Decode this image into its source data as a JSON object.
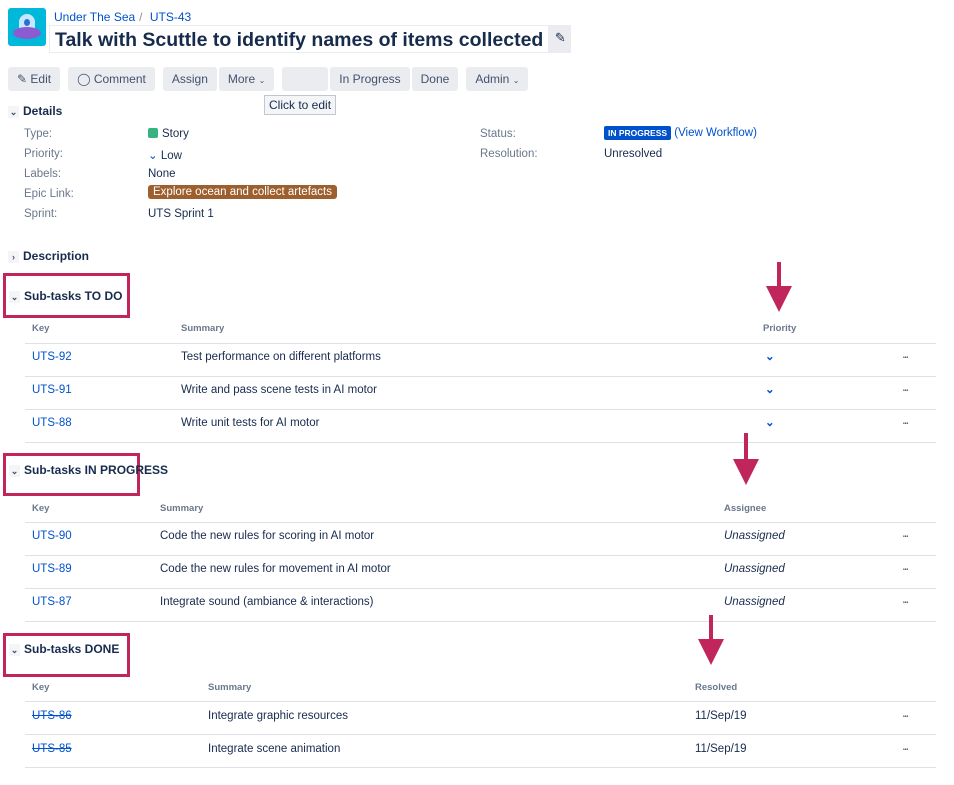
{
  "breadcrumb": {
    "project": "Under The Sea",
    "issue_key": "UTS-43"
  },
  "issue_title": "Talk with Scuttle to identify names of items collected",
  "toolbar": {
    "edit": "Edit",
    "comment": "Comment",
    "assign": "Assign",
    "more": "More",
    "in_progress": "In Progress",
    "done": "Done",
    "admin": "Admin",
    "tooltip": "Click to edit"
  },
  "details": {
    "heading": "Details",
    "type_label": "Type:",
    "type_value": "Story",
    "priority_label": "Priority:",
    "priority_value": "Low",
    "labels_label": "Labels:",
    "labels_value": "None",
    "epic_label": "Epic Link:",
    "epic_value": "Explore ocean and collect artefacts",
    "sprint_label": "Sprint:",
    "sprint_value": "UTS Sprint 1",
    "status_label": "Status:",
    "status_value": "IN PROGRESS",
    "workflow_link": "(View Workflow)",
    "resolution_label": "Resolution:",
    "resolution_value": "Unresolved"
  },
  "description": {
    "heading": "Description"
  },
  "sections": [
    {
      "heading": "Sub-tasks TO DO",
      "columns": [
        "Key",
        "Summary",
        "Priority"
      ],
      "done": false,
      "third_type": "priority-icon",
      "rows": [
        {
          "key": "UTS-92",
          "summary": "Test performance on different platforms",
          "third": ""
        },
        {
          "key": "UTS-91",
          "summary": "Write and pass scene tests in AI motor",
          "third": ""
        },
        {
          "key": "UTS-88",
          "summary": "Write unit tests for AI motor",
          "third": ""
        }
      ]
    },
    {
      "heading": "Sub-tasks IN PROGRESS",
      "columns": [
        "Key",
        "Summary",
        "Assignee"
      ],
      "done": false,
      "third_type": "text-italic",
      "rows": [
        {
          "key": "UTS-90",
          "summary": "Code the new rules for scoring in AI motor",
          "third": "Unassigned"
        },
        {
          "key": "UTS-89",
          "summary": "Code the new rules for movement in AI motor",
          "third": "Unassigned"
        },
        {
          "key": "UTS-87",
          "summary": "Integrate sound (ambiance & interactions)",
          "third": "Unassigned"
        }
      ]
    },
    {
      "heading": "Sub-tasks DONE",
      "columns": [
        "Key",
        "Summary",
        "Resolved"
      ],
      "done": true,
      "third_type": "text",
      "rows": [
        {
          "key": "UTS-86",
          "summary": "Integrate graphic resources",
          "third": "11/Sep/19"
        },
        {
          "key": "UTS-85",
          "summary": "Integrate scene animation",
          "third": "11/Sep/19"
        }
      ]
    }
  ],
  "colors": {
    "highlight": "#c0255c",
    "link": "#0052cc",
    "status": "#0052cc",
    "epic": "#9d5f2e"
  }
}
